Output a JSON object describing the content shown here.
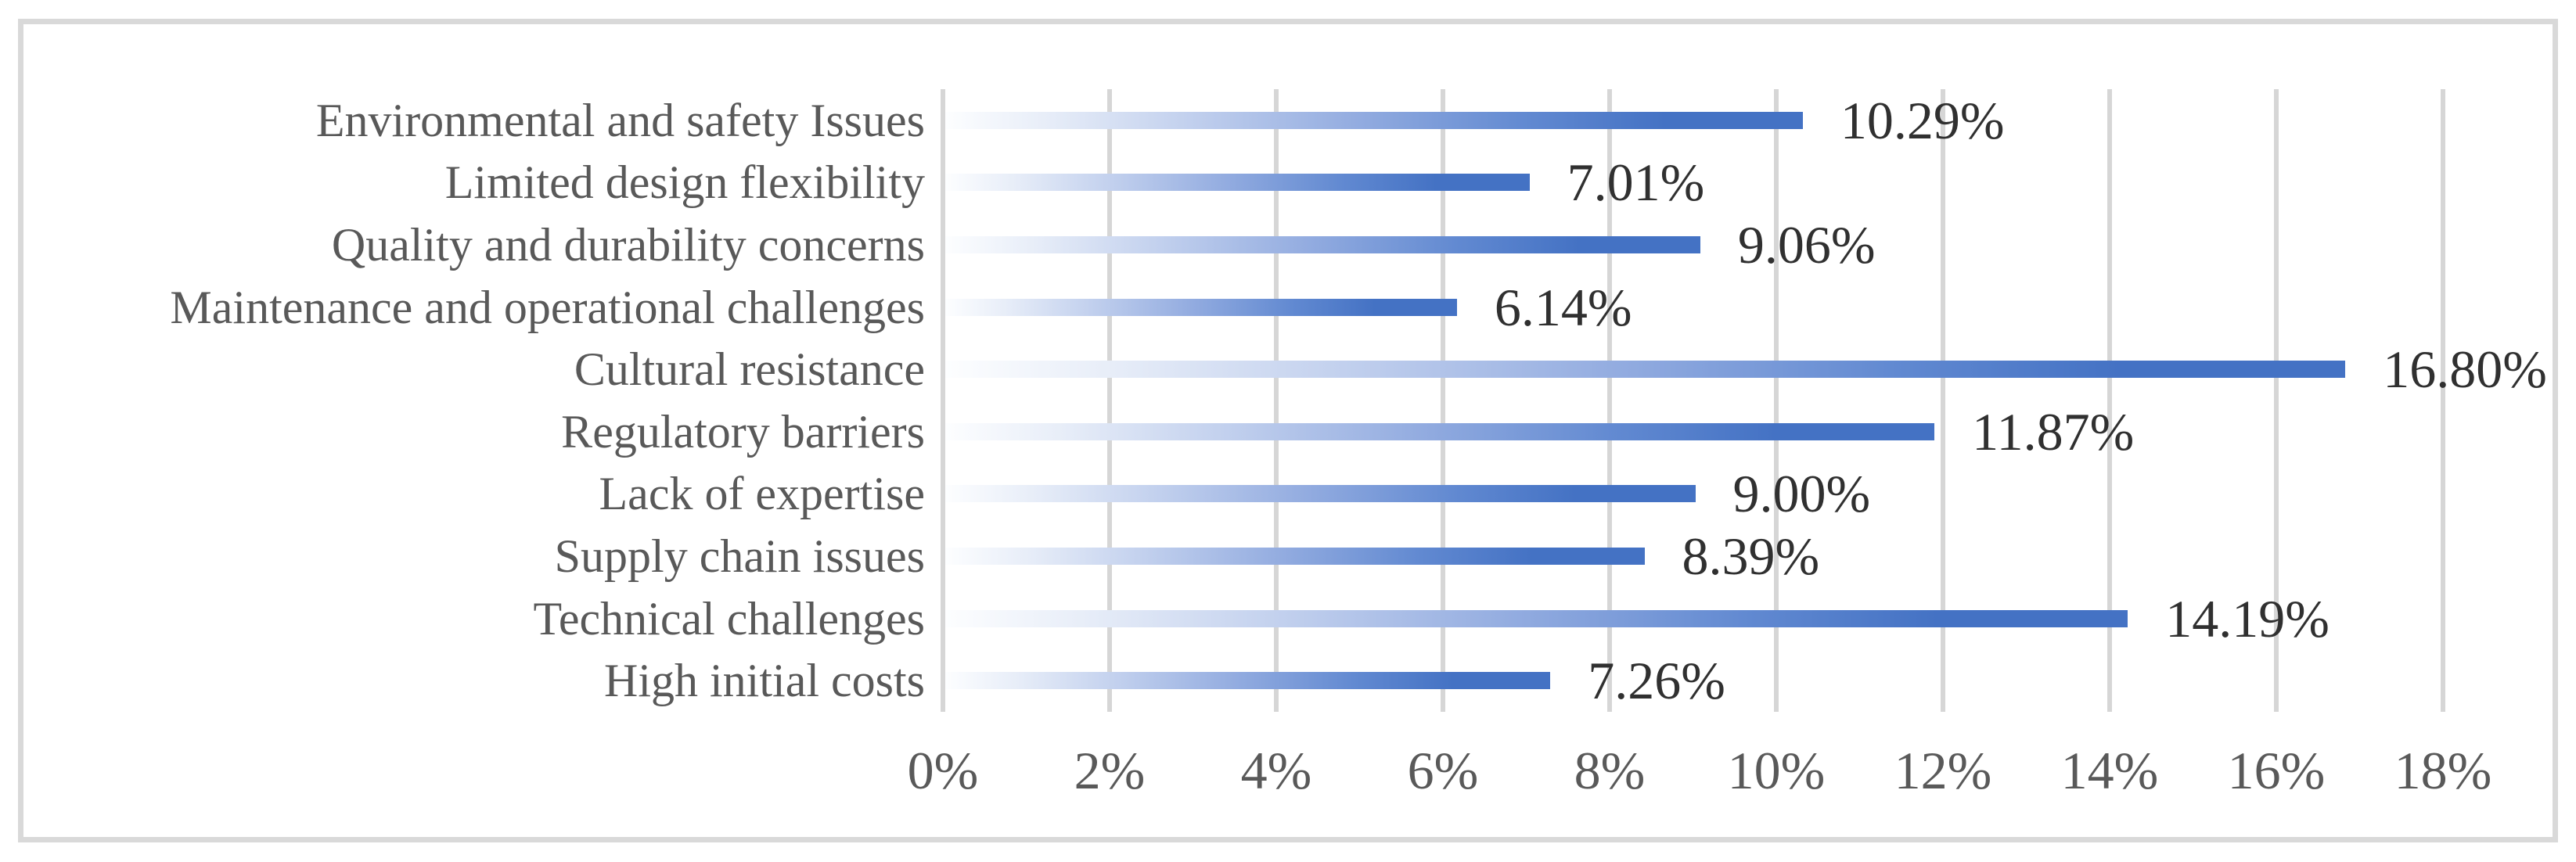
{
  "chart_data": {
    "type": "bar",
    "orientation": "horizontal",
    "title": "",
    "xlabel": "",
    "ylabel": "",
    "categories": [
      "Environmental and safety Issues",
      "Limited design flexibility",
      "Quality and durability concerns",
      "Maintenance and operational challenges",
      "Cultural resistance",
      "Regulatory barriers",
      "Lack of expertise",
      "Supply chain issues",
      "Technical challenges",
      "High initial costs"
    ],
    "values": [
      10.29,
      7.01,
      9.06,
      6.14,
      16.8,
      11.87,
      9.0,
      8.39,
      14.19,
      7.26
    ],
    "value_labels": [
      "10.29%",
      "7.01%",
      "9.06%",
      "6.14%",
      "16.80%",
      "11.87%",
      "9.00%",
      "8.39%",
      "14.19%",
      "7.26%"
    ],
    "x_ticks": [
      "0%",
      "2%",
      "4%",
      "6%",
      "8%",
      "10%",
      "12%",
      "14%",
      "16%",
      "18%"
    ],
    "xlim": [
      0,
      18
    ],
    "grid": "vertical-gridlines-on",
    "legend": "none",
    "colors": {
      "bar_gradient_start": "#fdfeff",
      "bar_gradient_end": "#4472c4",
      "gridline": "#d6d6d6",
      "frame_border": "#d9d9d9",
      "category_label": "#595959",
      "value_label": "#303030",
      "axis_tick_label": "#595959",
      "background": "#ffffff"
    }
  }
}
